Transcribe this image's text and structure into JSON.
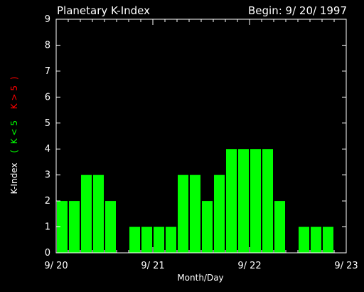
{
  "chart_data": {
    "type": "bar",
    "title": "Planetary K-Index",
    "begin_label": "Begin: 9/ 20/ 1997",
    "xlabel": "Month/Day",
    "ylabel": {
      "prefix": "K-Index",
      "open": "(",
      "low": "K < 5",
      "high": "K > 5",
      "close": ")"
    },
    "ylim": [
      0,
      9
    ],
    "yticks": [
      "0",
      "1",
      "2",
      "3",
      "4",
      "5",
      "6",
      "7",
      "8",
      "9"
    ],
    "xtick_labels": [
      "9/ 20",
      "9/ 21",
      "9/ 22",
      "9/ 23"
    ],
    "bars_per_day": 8,
    "days": 3,
    "values": [
      2,
      2,
      3,
      3,
      2,
      0,
      1,
      1,
      1,
      1,
      3,
      3,
      2,
      3,
      4,
      4,
      4,
      4,
      2,
      0,
      1,
      1,
      1,
      0
    ],
    "threshold": 5,
    "colors": {
      "background": "#000000",
      "axes": "#ffffff",
      "bar_low": "#00ff00",
      "bar_high": "#ff0000",
      "label_low": "#00ff00",
      "label_high": "#ff0000"
    }
  }
}
